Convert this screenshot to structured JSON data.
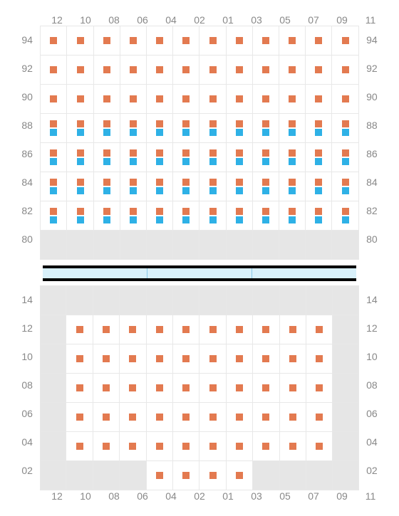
{
  "columns": [
    "12",
    "10",
    "08",
    "06",
    "04",
    "02",
    "01",
    "03",
    "05",
    "07",
    "09",
    "11"
  ],
  "top": {
    "row_labels": [
      "94",
      "92",
      "90",
      "88",
      "86",
      "84",
      "82",
      "80"
    ],
    "rows": [
      {
        "type": "single",
        "cells": [
          1,
          1,
          1,
          1,
          1,
          1,
          1,
          1,
          1,
          1,
          1,
          1
        ]
      },
      {
        "type": "single",
        "cells": [
          1,
          1,
          1,
          1,
          1,
          1,
          1,
          1,
          1,
          1,
          1,
          1
        ]
      },
      {
        "type": "single",
        "cells": [
          1,
          1,
          1,
          1,
          1,
          1,
          1,
          1,
          1,
          1,
          1,
          1
        ]
      },
      {
        "type": "pair",
        "cells": [
          1,
          1,
          1,
          1,
          1,
          1,
          1,
          1,
          1,
          1,
          1,
          1
        ]
      },
      {
        "type": "pair",
        "cells": [
          1,
          1,
          1,
          1,
          1,
          1,
          1,
          1,
          1,
          1,
          1,
          1
        ]
      },
      {
        "type": "pair",
        "cells": [
          1,
          1,
          1,
          1,
          1,
          1,
          1,
          1,
          1,
          1,
          1,
          1
        ]
      },
      {
        "type": "pair",
        "cells": [
          1,
          1,
          1,
          1,
          1,
          1,
          1,
          1,
          1,
          1,
          1,
          1
        ]
      },
      {
        "type": "inactive"
      }
    ]
  },
  "bottom": {
    "row_labels": [
      "14",
      "12",
      "10",
      "08",
      "06",
      "04",
      "02"
    ],
    "rows": [
      {
        "type": "inactive"
      },
      {
        "type": "single",
        "cells": [
          0,
          1,
          1,
          1,
          1,
          1,
          1,
          1,
          1,
          1,
          1,
          0
        ]
      },
      {
        "type": "single",
        "cells": [
          0,
          1,
          1,
          1,
          1,
          1,
          1,
          1,
          1,
          1,
          1,
          0
        ]
      },
      {
        "type": "single",
        "cells": [
          0,
          1,
          1,
          1,
          1,
          1,
          1,
          1,
          1,
          1,
          1,
          0
        ]
      },
      {
        "type": "single",
        "cells": [
          0,
          1,
          1,
          1,
          1,
          1,
          1,
          1,
          1,
          1,
          1,
          0
        ]
      },
      {
        "type": "single",
        "cells": [
          0,
          1,
          1,
          1,
          1,
          1,
          1,
          1,
          1,
          1,
          1,
          0
        ]
      },
      {
        "type": "single",
        "cells": [
          0,
          0,
          0,
          0,
          1,
          1,
          1,
          1,
          0,
          0,
          0,
          0
        ]
      }
    ]
  },
  "separator_segments": 3,
  "colors": {
    "orange": "#e37a50",
    "blue": "#2eb1e6",
    "cell_border": "#e8e8e8",
    "inactive": "#e6e6e6",
    "sep_bg": "#d8f0fa",
    "sep_border": "#88c8e8",
    "band_border": "#000000",
    "label": "#888888",
    "bg": "#ffffff"
  },
  "cell_size": 40,
  "square_size": 10,
  "label_fontsize": 14
}
